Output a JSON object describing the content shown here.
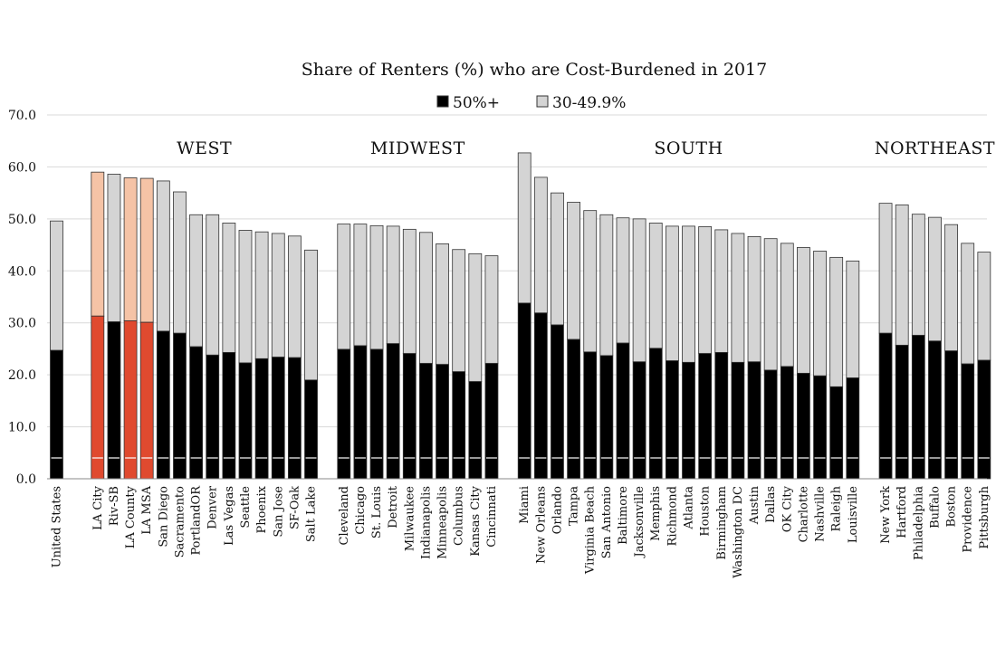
{
  "chart_data": {
    "type": "bar",
    "stacked": true,
    "title": "Share of Renters (%) who are Cost-Burdened in 2017",
    "ylim": [
      0,
      70
    ],
    "yticks": [
      "0.0",
      "10.0",
      "20.0",
      "30.0",
      "40.0",
      "50.0",
      "60.0",
      "70.0"
    ],
    "grid": true,
    "legend_position": "top",
    "colors": {
      "severe": "#000000",
      "moderate": "#d4d4d4",
      "highlight_severe": "#e04a2f",
      "highlight_moderate": "#f5c3a6",
      "grid": "#d9d9d9",
      "bar_edge": "#333333"
    },
    "series": [
      {
        "name": "50%+",
        "key": "severe"
      },
      {
        "name": "30-49.9%",
        "key": "moderate"
      }
    ],
    "groups": [
      {
        "label": "",
        "bars": [
          {
            "name": "United States",
            "severe": 24.7,
            "moderate": 24.9
          }
        ]
      },
      {
        "label": "WEST",
        "bars": [
          {
            "name": "LA City",
            "severe": 31.3,
            "moderate": 27.7,
            "highlight": true
          },
          {
            "name": "Riv-SB",
            "severe": 30.2,
            "moderate": 28.4
          },
          {
            "name": "LA County",
            "severe": 30.4,
            "moderate": 27.5,
            "highlight": true
          },
          {
            "name": "LA MSA",
            "severe": 30.1,
            "moderate": 27.7,
            "highlight": true
          },
          {
            "name": "San Diego",
            "severe": 28.4,
            "moderate": 28.9
          },
          {
            "name": "Sacramento",
            "severe": 28.0,
            "moderate": 27.2
          },
          {
            "name": "PortlandOR",
            "severe": 25.4,
            "moderate": 25.4
          },
          {
            "name": "Denver",
            "severe": 23.8,
            "moderate": 27.0
          },
          {
            "name": "Las Vegas",
            "severe": 24.3,
            "moderate": 24.9
          },
          {
            "name": "Seattle",
            "severe": 22.3,
            "moderate": 25.5
          },
          {
            "name": "Phoenix",
            "severe": 23.1,
            "moderate": 24.4
          },
          {
            "name": "San Jose",
            "severe": 23.4,
            "moderate": 23.8
          },
          {
            "name": "SF-Oak",
            "severe": 23.3,
            "moderate": 23.4
          },
          {
            "name": "Salt Lake",
            "severe": 19.0,
            "moderate": 25.0
          }
        ]
      },
      {
        "label": "MIDWEST",
        "bars": [
          {
            "name": "Cleveland",
            "severe": 24.9,
            "moderate": 24.1
          },
          {
            "name": "Chicago",
            "severe": 25.6,
            "moderate": 23.4
          },
          {
            "name": "St. Louis",
            "severe": 24.9,
            "moderate": 23.8
          },
          {
            "name": "Detroit",
            "severe": 26.0,
            "moderate": 22.6
          },
          {
            "name": "Milwaukee",
            "severe": 24.1,
            "moderate": 23.9
          },
          {
            "name": "Indianapolis",
            "severe": 22.2,
            "moderate": 25.2
          },
          {
            "name": "Minneapolis",
            "severe": 22.0,
            "moderate": 23.2
          },
          {
            "name": "Columbus",
            "severe": 20.6,
            "moderate": 23.5
          },
          {
            "name": "Kansas City",
            "severe": 18.7,
            "moderate": 24.6
          },
          {
            "name": "Cincinnati",
            "severe": 22.2,
            "moderate": 20.7
          }
        ]
      },
      {
        "label": "SOUTH",
        "bars": [
          {
            "name": "Miami",
            "severe": 33.8,
            "moderate": 28.9
          },
          {
            "name": "New Orleans",
            "severe": 31.9,
            "moderate": 26.1
          },
          {
            "name": "Orlando",
            "severe": 29.6,
            "moderate": 25.4
          },
          {
            "name": "Tampa",
            "severe": 26.8,
            "moderate": 26.4
          },
          {
            "name": "Virginia Beach",
            "severe": 24.4,
            "moderate": 27.2
          },
          {
            "name": "San Antonio",
            "severe": 23.7,
            "moderate": 27.1
          },
          {
            "name": "Baltimore",
            "severe": 26.1,
            "moderate": 24.1
          },
          {
            "name": "Jacksonville",
            "severe": 22.5,
            "moderate": 27.5
          },
          {
            "name": "Memphis",
            "severe": 25.1,
            "moderate": 24.1
          },
          {
            "name": "Richmond",
            "severe": 22.7,
            "moderate": 25.9
          },
          {
            "name": "Atlanta",
            "severe": 22.4,
            "moderate": 26.2
          },
          {
            "name": "Houston",
            "severe": 24.1,
            "moderate": 24.4
          },
          {
            "name": "Birmingham",
            "severe": 24.3,
            "moderate": 23.6
          },
          {
            "name": "Washington DC",
            "severe": 22.4,
            "moderate": 24.8
          },
          {
            "name": "Austin",
            "severe": 22.5,
            "moderate": 24.1
          },
          {
            "name": "Dallas",
            "severe": 20.9,
            "moderate": 25.3
          },
          {
            "name": "OK City",
            "severe": 21.6,
            "moderate": 23.7
          },
          {
            "name": "Charlotte",
            "severe": 20.3,
            "moderate": 24.2
          },
          {
            "name": "Nashville",
            "severe": 19.8,
            "moderate": 24.0
          },
          {
            "name": "Raleigh",
            "severe": 17.7,
            "moderate": 24.9
          },
          {
            "name": "Louisville",
            "severe": 19.4,
            "moderate": 22.5
          }
        ]
      },
      {
        "label": "NORTHEAST",
        "bars": [
          {
            "name": "New York",
            "severe": 28.0,
            "moderate": 25.0
          },
          {
            "name": "Hartford",
            "severe": 25.7,
            "moderate": 27.0
          },
          {
            "name": "Philadelphia",
            "severe": 27.6,
            "moderate": 23.3
          },
          {
            "name": "Buffalo",
            "severe": 26.5,
            "moderate": 23.8
          },
          {
            "name": "Boston",
            "severe": 24.6,
            "moderate": 24.3
          },
          {
            "name": "Providence",
            "severe": 22.1,
            "moderate": 23.2
          },
          {
            "name": "Pittsburgh",
            "severe": 22.8,
            "moderate": 20.8
          }
        ]
      }
    ]
  }
}
